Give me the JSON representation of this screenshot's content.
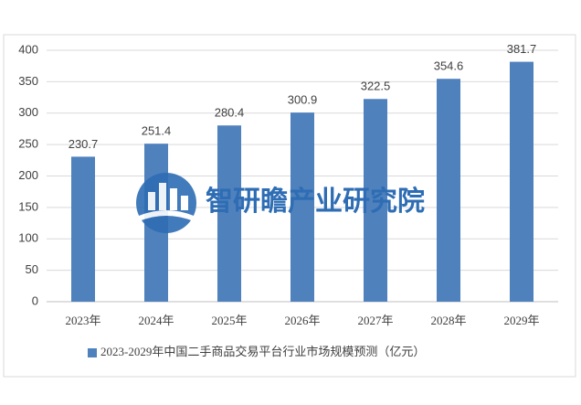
{
  "chart_data": {
    "type": "bar",
    "categories": [
      "2023年",
      "2024年",
      "2025年",
      "2026年",
      "2027年",
      "2028年",
      "2029年"
    ],
    "series": [
      {
        "name": "2023-2029年中国二手商品交易平台行业市场规模预测（亿元）",
        "color": "#4f81bd",
        "values": [
          230.7,
          251.4,
          280.4,
          300.9,
          322.5,
          354.6,
          381.7
        ]
      }
    ],
    "ylim": [
      0,
      400
    ],
    "yticks": [
      0,
      50,
      100,
      150,
      200,
      250,
      300,
      350,
      400
    ],
    "grid": true,
    "legend": "bottom",
    "watermark": "智研瞻产业研究院"
  }
}
